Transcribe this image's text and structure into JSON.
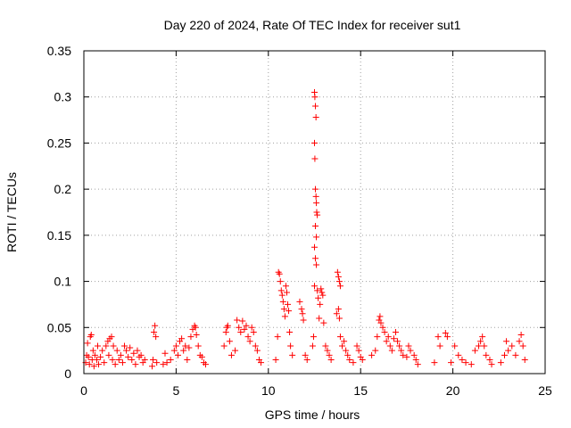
{
  "chart_data": {
    "type": "scatter",
    "title": "Day 220 of 2024, Rate Of TEC Index for receiver sut1",
    "xlabel": "GPS time / hours",
    "ylabel": "ROTI / TECUs",
    "xlim": [
      0,
      25
    ],
    "ylim": [
      0,
      0.35
    ],
    "x_ticks": [
      "0",
      "5",
      "10",
      "15",
      "20",
      "25"
    ],
    "y_ticks": [
      "0",
      "0.05",
      "0.1",
      "0.15",
      "0.2",
      "0.25",
      "0.3",
      "0.35"
    ],
    "grid": true,
    "marker": "+",
    "color": "#ff0000",
    "series": [
      {
        "points": [
          [
            0.1,
            0.012
          ],
          [
            0.15,
            0.02
          ],
          [
            0.2,
            0.033
          ],
          [
            0.25,
            0.018
          ],
          [
            0.3,
            0.01
          ],
          [
            0.35,
            0.04
          ],
          [
            0.4,
            0.042
          ],
          [
            0.45,
            0.015
          ],
          [
            0.5,
            0.025
          ],
          [
            0.55,
            0.008
          ],
          [
            0.6,
            0.02
          ],
          [
            0.7,
            0.015
          ],
          [
            0.75,
            0.03
          ],
          [
            0.8,
            0.01
          ],
          [
            0.9,
            0.018
          ],
          [
            1.0,
            0.025
          ],
          [
            1.1,
            0.012
          ],
          [
            1.2,
            0.03
          ],
          [
            1.3,
            0.035
          ],
          [
            1.35,
            0.02
          ],
          [
            1.4,
            0.038
          ],
          [
            1.5,
            0.04
          ],
          [
            1.55,
            0.015
          ],
          [
            1.6,
            0.03
          ],
          [
            1.7,
            0.01
          ],
          [
            1.8,
            0.025
          ],
          [
            1.9,
            0.015
          ],
          [
            2.0,
            0.02
          ],
          [
            2.1,
            0.012
          ],
          [
            2.2,
            0.03
          ],
          [
            2.3,
            0.025
          ],
          [
            2.4,
            0.018
          ],
          [
            2.5,
            0.028
          ],
          [
            2.6,
            0.015
          ],
          [
            2.7,
            0.022
          ],
          [
            2.8,
            0.01
          ],
          [
            2.9,
            0.025
          ],
          [
            3.0,
            0.018
          ],
          [
            3.1,
            0.02
          ],
          [
            3.2,
            0.012
          ],
          [
            3.3,
            0.015
          ],
          [
            3.7,
            0.008
          ],
          [
            3.75,
            0.015
          ],
          [
            3.8,
            0.045
          ],
          [
            3.85,
            0.052
          ],
          [
            3.9,
            0.04
          ],
          [
            3.95,
            0.012
          ],
          [
            4.3,
            0.01
          ],
          [
            4.4,
            0.022
          ],
          [
            4.5,
            0.012
          ],
          [
            4.7,
            0.015
          ],
          [
            4.9,
            0.025
          ],
          [
            5.0,
            0.03
          ],
          [
            5.1,
            0.02
          ],
          [
            5.2,
            0.035
          ],
          [
            5.3,
            0.038
          ],
          [
            5.4,
            0.025
          ],
          [
            5.5,
            0.03
          ],
          [
            5.6,
            0.015
          ],
          [
            5.7,
            0.028
          ],
          [
            5.8,
            0.04
          ],
          [
            5.9,
            0.048
          ],
          [
            6.0,
            0.052
          ],
          [
            6.05,
            0.05
          ],
          [
            6.1,
            0.042
          ],
          [
            6.2,
            0.03
          ],
          [
            6.3,
            0.02
          ],
          [
            6.4,
            0.018
          ],
          [
            6.5,
            0.012
          ],
          [
            6.6,
            0.01
          ],
          [
            7.6,
            0.03
          ],
          [
            7.7,
            0.045
          ],
          [
            7.75,
            0.05
          ],
          [
            7.8,
            0.052
          ],
          [
            7.9,
            0.035
          ],
          [
            8.0,
            0.02
          ],
          [
            8.2,
            0.025
          ],
          [
            8.3,
            0.058
          ],
          [
            8.4,
            0.05
          ],
          [
            8.5,
            0.045
          ],
          [
            8.6,
            0.057
          ],
          [
            8.7,
            0.048
          ],
          [
            8.8,
            0.052
          ],
          [
            8.9,
            0.04
          ],
          [
            9.0,
            0.035
          ],
          [
            9.1,
            0.05
          ],
          [
            9.2,
            0.045
          ],
          [
            9.3,
            0.03
          ],
          [
            9.4,
            0.025
          ],
          [
            9.5,
            0.015
          ],
          [
            9.6,
            0.012
          ],
          [
            10.4,
            0.015
          ],
          [
            10.5,
            0.04
          ],
          [
            10.55,
            0.11
          ],
          [
            10.6,
            0.108
          ],
          [
            10.65,
            0.1
          ],
          [
            10.7,
            0.09
          ],
          [
            10.75,
            0.085
          ],
          [
            10.8,
            0.078
          ],
          [
            10.85,
            0.07
          ],
          [
            10.9,
            0.062
          ],
          [
            10.95,
            0.095
          ],
          [
            11.0,
            0.088
          ],
          [
            11.05,
            0.075
          ],
          [
            11.1,
            0.068
          ],
          [
            11.15,
            0.045
          ],
          [
            11.2,
            0.03
          ],
          [
            11.3,
            0.02
          ],
          [
            11.7,
            0.078
          ],
          [
            11.8,
            0.07
          ],
          [
            11.85,
            0.065
          ],
          [
            11.9,
            0.058
          ],
          [
            12.0,
            0.02
          ],
          [
            12.1,
            0.015
          ],
          [
            12.4,
            0.03
          ],
          [
            12.45,
            0.04
          ],
          [
            12.5,
            0.305
          ],
          [
            12.52,
            0.3
          ],
          [
            12.55,
            0.29
          ],
          [
            12.58,
            0.278
          ],
          [
            12.5,
            0.25
          ],
          [
            12.52,
            0.233
          ],
          [
            12.55,
            0.2
          ],
          [
            12.58,
            0.192
          ],
          [
            12.6,
            0.185
          ],
          [
            12.62,
            0.175
          ],
          [
            12.65,
            0.172
          ],
          [
            12.55,
            0.16
          ],
          [
            12.6,
            0.148
          ],
          [
            12.5,
            0.137
          ],
          [
            12.55,
            0.125
          ],
          [
            12.6,
            0.118
          ],
          [
            12.5,
            0.095
          ],
          [
            12.65,
            0.09
          ],
          [
            12.7,
            0.082
          ],
          [
            12.75,
            0.06
          ],
          [
            12.8,
            0.075
          ],
          [
            12.85,
            0.092
          ],
          [
            12.9,
            0.088
          ],
          [
            12.95,
            0.085
          ],
          [
            13.0,
            0.055
          ],
          [
            13.1,
            0.03
          ],
          [
            13.2,
            0.025
          ],
          [
            13.3,
            0.02
          ],
          [
            13.4,
            0.015
          ],
          [
            13.7,
            0.065
          ],
          [
            13.75,
            0.11
          ],
          [
            13.8,
            0.105
          ],
          [
            13.85,
            0.1
          ],
          [
            13.9,
            0.095
          ],
          [
            13.8,
            0.07
          ],
          [
            13.85,
            0.06
          ],
          [
            13.9,
            0.04
          ],
          [
            14.0,
            0.03
          ],
          [
            14.1,
            0.035
          ],
          [
            14.2,
            0.025
          ],
          [
            14.3,
            0.02
          ],
          [
            14.4,
            0.015
          ],
          [
            14.6,
            0.012
          ],
          [
            14.8,
            0.03
          ],
          [
            14.9,
            0.025
          ],
          [
            15.0,
            0.018
          ],
          [
            15.1,
            0.015
          ],
          [
            15.6,
            0.02
          ],
          [
            15.8,
            0.025
          ],
          [
            15.9,
            0.04
          ],
          [
            16.0,
            0.058
          ],
          [
            16.05,
            0.062
          ],
          [
            16.1,
            0.055
          ],
          [
            16.2,
            0.05
          ],
          [
            16.3,
            0.045
          ],
          [
            16.4,
            0.035
          ],
          [
            16.5,
            0.04
          ],
          [
            16.6,
            0.03
          ],
          [
            16.7,
            0.025
          ],
          [
            16.8,
            0.038
          ],
          [
            16.9,
            0.045
          ],
          [
            17.0,
            0.035
          ],
          [
            17.1,
            0.03
          ],
          [
            17.2,
            0.025
          ],
          [
            17.3,
            0.02
          ],
          [
            17.5,
            0.018
          ],
          [
            17.6,
            0.03
          ],
          [
            17.7,
            0.025
          ],
          [
            17.9,
            0.02
          ],
          [
            18.0,
            0.015
          ],
          [
            18.1,
            0.01
          ],
          [
            19.0,
            0.012
          ],
          [
            19.2,
            0.04
          ],
          [
            19.3,
            0.03
          ],
          [
            19.6,
            0.044
          ],
          [
            19.7,
            0.04
          ],
          [
            19.9,
            0.012
          ],
          [
            20.1,
            0.03
          ],
          [
            20.3,
            0.02
          ],
          [
            20.5,
            0.015
          ],
          [
            20.7,
            0.012
          ],
          [
            21.0,
            0.01
          ],
          [
            21.2,
            0.025
          ],
          [
            21.4,
            0.03
          ],
          [
            21.5,
            0.035
          ],
          [
            21.6,
            0.04
          ],
          [
            21.7,
            0.03
          ],
          [
            21.8,
            0.02
          ],
          [
            22.0,
            0.015
          ],
          [
            22.1,
            0.01
          ],
          [
            22.6,
            0.012
          ],
          [
            22.8,
            0.02
          ],
          [
            22.9,
            0.035
          ],
          [
            23.0,
            0.025
          ],
          [
            23.2,
            0.03
          ],
          [
            23.4,
            0.02
          ],
          [
            23.6,
            0.035
          ],
          [
            23.7,
            0.042
          ],
          [
            23.8,
            0.03
          ],
          [
            23.9,
            0.015
          ]
        ]
      }
    ]
  }
}
